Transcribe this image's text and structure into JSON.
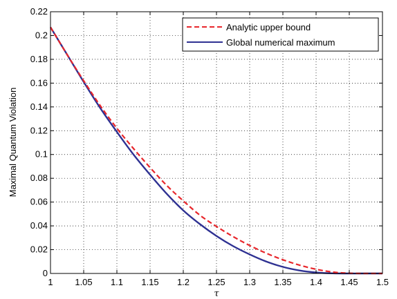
{
  "chart_data": {
    "type": "line",
    "title": "",
    "xlabel": "τ",
    "ylabel": "Maximal Quantum Violation",
    "xlim": [
      1,
      1.5
    ],
    "ylim": [
      0,
      0.22
    ],
    "xticks": [
      1,
      1.05,
      1.1,
      1.15,
      1.2,
      1.25,
      1.3,
      1.35,
      1.4,
      1.45,
      1.5
    ],
    "yticks": [
      0,
      0.02,
      0.04,
      0.06,
      0.08,
      0.1,
      0.12,
      0.14,
      0.16,
      0.18,
      0.2,
      0.22
    ],
    "xtick_labels": [
      "1",
      "1.05",
      "1.1",
      "1.15",
      "1.2",
      "1.25",
      "1.3",
      "1.35",
      "1.4",
      "1.45",
      "1.5"
    ],
    "ytick_labels": [
      "0",
      "0.02",
      "0.04",
      "0.06",
      "0.08",
      "0.1",
      "0.12",
      "0.14",
      "0.16",
      "0.18",
      "0.2",
      "0.22"
    ],
    "grid": true,
    "legend_position": "top-right",
    "series": [
      {
        "name": "Analytic upper bound",
        "color": "#e8262b",
        "style": "dashed",
        "x": [
          1,
          1.025,
          1.05,
          1.075,
          1.1,
          1.125,
          1.15,
          1.175,
          1.2,
          1.225,
          1.25,
          1.275,
          1.3,
          1.325,
          1.35,
          1.375,
          1.4,
          1.425,
          1.45,
          1.475,
          1.5
        ],
        "y": [
          0.207,
          0.184,
          0.162,
          0.141,
          0.122,
          0.105,
          0.089,
          0.074,
          0.061,
          0.049,
          0.0395,
          0.031,
          0.0235,
          0.017,
          0.0115,
          0.007,
          0.0035,
          0.0012,
          0.0002,
          0.0,
          0.0
        ]
      },
      {
        "name": "Global numerical maximum",
        "color": "#2e3192",
        "style": "solid",
        "x": [
          1,
          1.025,
          1.05,
          1.075,
          1.1,
          1.125,
          1.15,
          1.175,
          1.2,
          1.225,
          1.25,
          1.275,
          1.3,
          1.325,
          1.35,
          1.375,
          1.4,
          1.425,
          1.45,
          1.475,
          1.5
        ],
        "y": [
          0.207,
          0.184,
          0.161,
          0.139,
          0.119,
          0.1,
          0.083,
          0.067,
          0.053,
          0.0415,
          0.0315,
          0.023,
          0.016,
          0.01,
          0.0055,
          0.0025,
          0.0008,
          0.0001,
          0.0,
          0.0,
          0.0
        ]
      }
    ]
  }
}
